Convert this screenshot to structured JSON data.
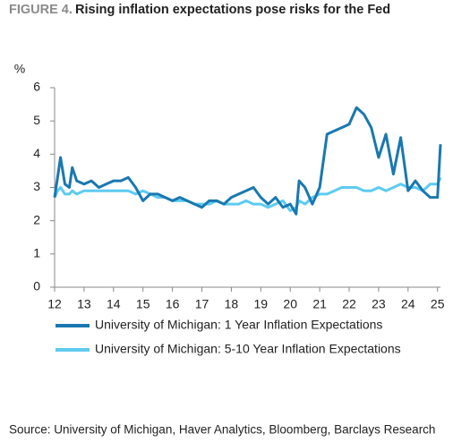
{
  "chart_data": {
    "type": "line",
    "title_label": "FIGURE 4.",
    "title": "Rising inflation expectations pose risks for the Fed",
    "y_label": "%",
    "source": "Source: University of Michigan, Haver Analytics, Bloomberg, Barclays Research",
    "x": [
      12.0,
      12.1,
      12.2,
      12.35,
      12.5,
      12.6,
      12.75,
      13.0,
      13.25,
      13.5,
      13.75,
      14.0,
      14.25,
      14.5,
      14.75,
      15.0,
      15.25,
      15.5,
      15.75,
      16.0,
      16.25,
      16.5,
      16.75,
      17.0,
      17.25,
      17.5,
      17.75,
      18.0,
      18.25,
      18.5,
      18.75,
      19.0,
      19.25,
      19.5,
      19.75,
      20.0,
      20.2,
      20.3,
      20.5,
      20.75,
      21.0,
      21.25,
      21.5,
      21.75,
      22.0,
      22.25,
      22.5,
      22.75,
      23.0,
      23.25,
      23.5,
      23.75,
      24.0,
      24.25,
      24.5,
      24.75,
      25.0,
      25.1
    ],
    "series": [
      {
        "name": "University of Michigan: 1 Year Inflation Expectations",
        "color": "#1a78b0",
        "values": [
          2.7,
          3.3,
          3.9,
          3.1,
          3.0,
          3.6,
          3.2,
          3.1,
          3.2,
          3.0,
          3.1,
          3.2,
          3.2,
          3.3,
          3.0,
          2.6,
          2.8,
          2.8,
          2.7,
          2.6,
          2.7,
          2.6,
          2.5,
          2.4,
          2.6,
          2.6,
          2.5,
          2.7,
          2.8,
          2.9,
          3.0,
          2.7,
          2.5,
          2.7,
          2.4,
          2.5,
          2.2,
          3.2,
          3.0,
          2.5,
          3.0,
          4.6,
          4.7,
          4.8,
          4.9,
          5.4,
          5.2,
          4.8,
          3.9,
          4.6,
          3.4,
          4.5,
          2.9,
          3.2,
          2.9,
          2.7,
          2.7,
          4.3
        ]
      },
      {
        "name": "University of Michigan: 5-10 Year Inflation Expectations",
        "color": "#5ecbf0",
        "values": [
          2.7,
          2.9,
          3.0,
          2.8,
          2.8,
          2.9,
          2.8,
          2.9,
          2.9,
          2.9,
          2.9,
          2.9,
          2.9,
          2.9,
          2.8,
          2.9,
          2.8,
          2.7,
          2.7,
          2.6,
          2.6,
          2.6,
          2.5,
          2.5,
          2.5,
          2.6,
          2.5,
          2.5,
          2.5,
          2.6,
          2.5,
          2.5,
          2.4,
          2.5,
          2.6,
          2.3,
          2.4,
          2.6,
          2.5,
          2.7,
          2.8,
          2.8,
          2.9,
          3.0,
          3.0,
          3.0,
          2.9,
          2.9,
          3.0,
          2.9,
          3.0,
          3.1,
          3.0,
          3.0,
          2.9,
          3.1,
          3.1,
          3.3
        ]
      }
    ],
    "xlim": [
      12,
      25.1
    ],
    "xticks": [
      12,
      13,
      14,
      15,
      16,
      17,
      18,
      19,
      20,
      21,
      22,
      23,
      24,
      25
    ],
    "ylim": [
      0,
      6
    ],
    "yticks": [
      0,
      1,
      2,
      3,
      4,
      5,
      6
    ],
    "grid": false
  }
}
